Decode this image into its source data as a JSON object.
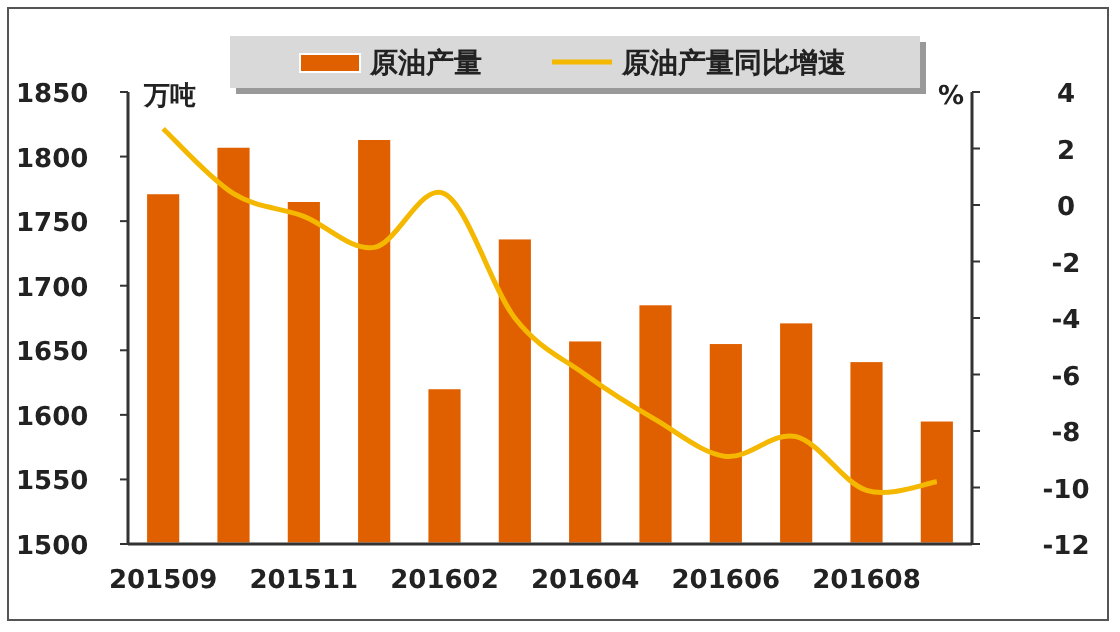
{
  "chart_data": {
    "type": "bar",
    "ylabel": "万吨",
    "y2label": "%",
    "categories": [
      "201509",
      null,
      "201511",
      null,
      "201602",
      null,
      "201604",
      null,
      "201606",
      null,
      "201608",
      null
    ],
    "series": [
      {
        "name": "原油产量",
        "color": "#e06000",
        "values": [
          1772,
          1808,
          1766,
          1814,
          1621,
          1737,
          1658,
          1686,
          1656,
          1672,
          1642,
          1596
        ]
      },
      {
        "name": "原油产量同比增速",
        "type": "line",
        "axis": "y2",
        "color": "#f5b800",
        "values": [
          2.7,
          0.4,
          -0.4,
          -1.5,
          0.4,
          -4.0,
          -6.0,
          -7.6,
          -8.9,
          -8.2,
          -10.1,
          -9.8
        ]
      }
    ],
    "ylim": [
      1500,
      1850
    ],
    "yticks": [
      1500,
      1550,
      1600,
      1650,
      1700,
      1750,
      1800,
      1850
    ],
    "y2lim": [
      -12,
      4
    ],
    "y2ticks": [
      -12,
      -10,
      -8,
      -6,
      -4,
      -2,
      0,
      2,
      4
    ],
    "grid": false,
    "legend": "top",
    "marker": "none",
    "line_style": "solid"
  }
}
